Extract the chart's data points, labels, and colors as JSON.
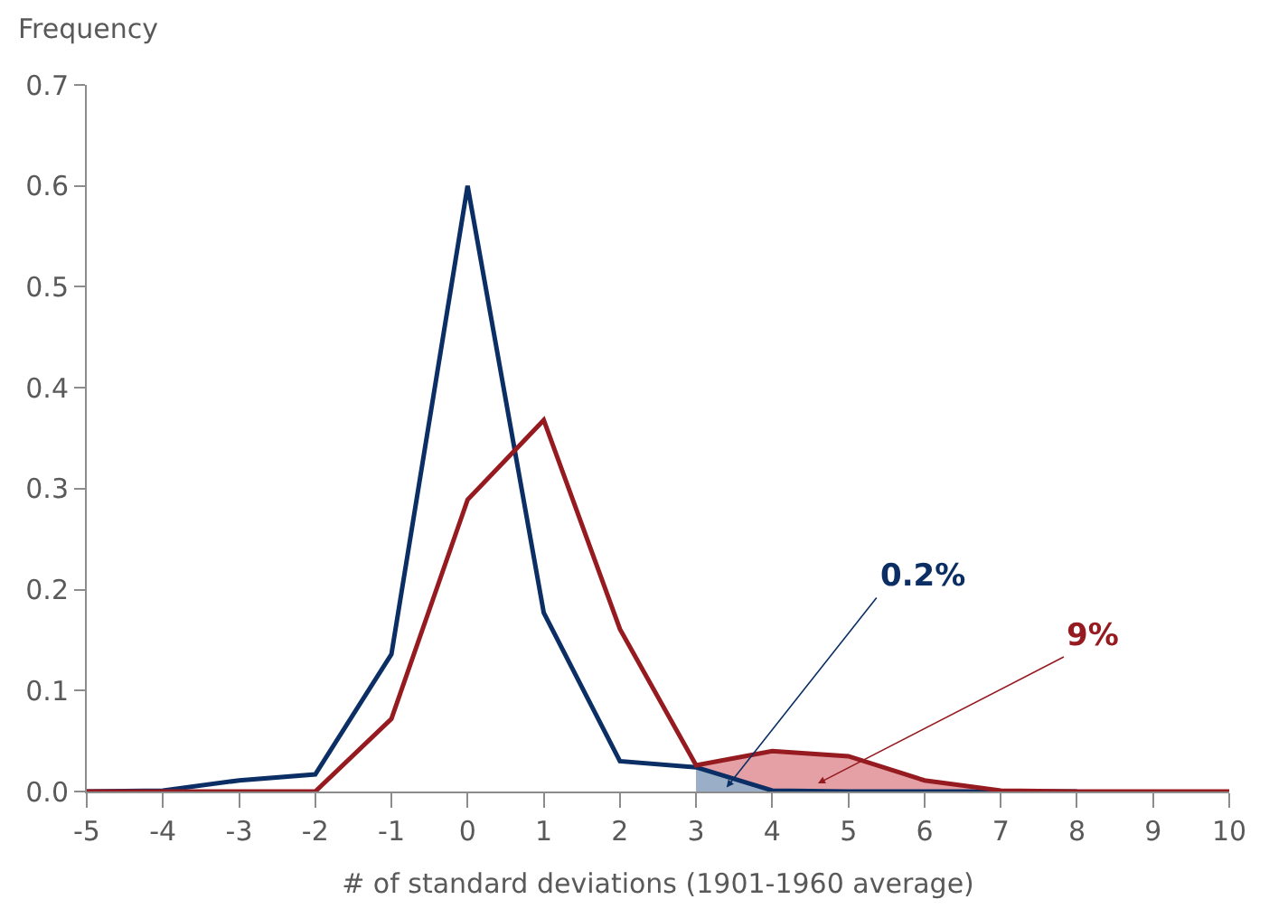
{
  "chart_data": {
    "type": "line",
    "ylabel": "Frequency",
    "xlabel": "# of standard deviations (1901-1960 average)",
    "x": [
      -5,
      -4,
      -3,
      -2,
      -1,
      0,
      1,
      2,
      3,
      4,
      5,
      6,
      7,
      8,
      9,
      10
    ],
    "series": [
      {
        "type": "area",
        "color": "#e4a0a4",
        "x": [
          3,
          4,
          5,
          6,
          7,
          8,
          9,
          10
        ],
        "values": [
          0.026,
          0.04,
          0.035,
          0.011,
          0.001,
          0,
          0,
          0
        ]
      },
      {
        "type": "area",
        "color": "#9aafc7",
        "x": [
          3,
          4
        ],
        "values": [
          0.024,
          0.001
        ]
      },
      {
        "color": "#0b2f64",
        "values": [
          0,
          0.001,
          0.011,
          0.017,
          0.136,
          0.6,
          0.177,
          0.03,
          0.024,
          0.001,
          0,
          0,
          0,
          0,
          null,
          null
        ]
      },
      {
        "color": "#951b20",
        "values": [
          0,
          0,
          0,
          0,
          0.072,
          0.289,
          0.368,
          0.161,
          0.026,
          0.04,
          0.035,
          0.011,
          0.001,
          0,
          0,
          0
        ]
      }
    ],
    "annotations": [
      {
        "text": "0.2%",
        "x": 3.4,
        "y": 0.004
      },
      {
        "text": "9%",
        "x": 4.6,
        "y": 0.008
      }
    ],
    "xlim": [
      -5,
      10
    ],
    "xticks": [
      -5,
      -4,
      -3,
      -2,
      -1,
      0,
      1,
      2,
      3,
      4,
      5,
      6,
      7,
      8,
      9,
      10
    ],
    "ylim": [
      0,
      0.7
    ],
    "yticks": [
      {
        "value": 0,
        "label": "0.0"
      },
      0.1,
      0.2,
      0.3,
      0.4,
      0.5,
      0.6,
      0.7
    ],
    "marker": "none",
    "line_style": "solid"
  }
}
